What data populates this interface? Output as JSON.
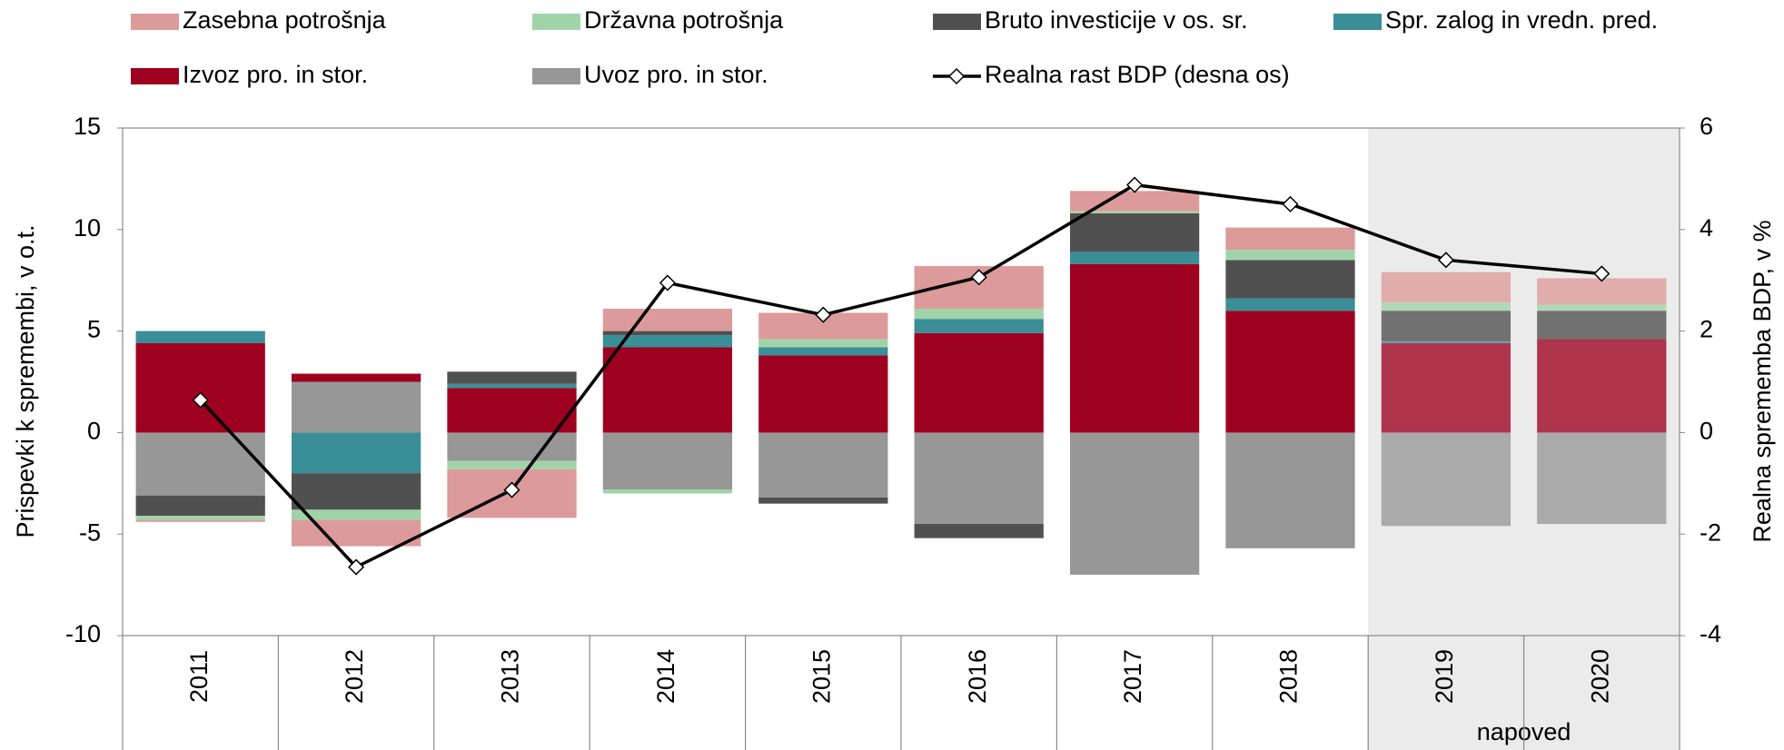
{
  "chart_data": {
    "type": "bar",
    "stacked": true,
    "y_label": "Prispevki k spremembi, v o.t.",
    "y2_label": "Realna sprememba BDP, v %",
    "categories": [
      "2011",
      "2012",
      "2013",
      "2014",
      "2015",
      "2016",
      "2017",
      "2018",
      "2019",
      "2020"
    ],
    "forecast_label": "napoved",
    "forecast_start": "2019",
    "ylim": [
      -10,
      15
    ],
    "yticks": [
      -10,
      -5,
      0,
      5,
      10,
      15
    ],
    "y2lim": [
      -4,
      6
    ],
    "y2ticks": [
      -4,
      -2,
      0,
      2,
      4,
      6
    ],
    "series": [
      {
        "name": "Zasebna potrošnja",
        "color": "#dc9a9a",
        "values": [
          -0.1,
          -1.3,
          -2.4,
          1.1,
          1.3,
          2.1,
          1.0,
          1.1,
          1.5,
          1.3
        ]
      },
      {
        "name": "Državna potrošnja",
        "color": "#a0d4a8",
        "values": [
          -0.2,
          -0.5,
          -0.4,
          -0.2,
          0.4,
          0.5,
          0.1,
          0.5,
          0.4,
          0.3
        ]
      },
      {
        "name": "Bruto investicije v os. sr.",
        "color": "#505050",
        "values": [
          -1.0,
          -1.8,
          0.6,
          0.2,
          -0.3,
          -0.7,
          1.9,
          1.9,
          1.5,
          1.4
        ]
      },
      {
        "name": "Spr. zalog in vredn. pred.",
        "color": "#3a8e98",
        "values": [
          0.6,
          -2.0,
          0.2,
          0.6,
          0.4,
          0.7,
          0.6,
          0.6,
          0.1,
          0.0
        ]
      },
      {
        "name": "Izvoz pro. in stor.",
        "color": "#9e0020",
        "values": [
          4.4,
          0.4,
          2.2,
          4.2,
          3.8,
          4.9,
          8.3,
          6.0,
          4.4,
          4.6
        ]
      },
      {
        "name": "Uvoz pro. in stor.",
        "color": "#979797",
        "values": [
          -3.1,
          2.5,
          -1.4,
          -2.8,
          -3.2,
          -4.5,
          -7.0,
          -5.7,
          -4.6,
          -4.5
        ]
      },
      {
        "name": "Realna rast BDP (desna os)",
        "color": "#000000",
        "type": "line",
        "axis": "y2",
        "values": [
          0.64,
          -2.65,
          -1.13,
          2.95,
          2.32,
          3.06,
          4.88,
          4.5,
          3.4,
          3.13
        ]
      }
    ]
  }
}
